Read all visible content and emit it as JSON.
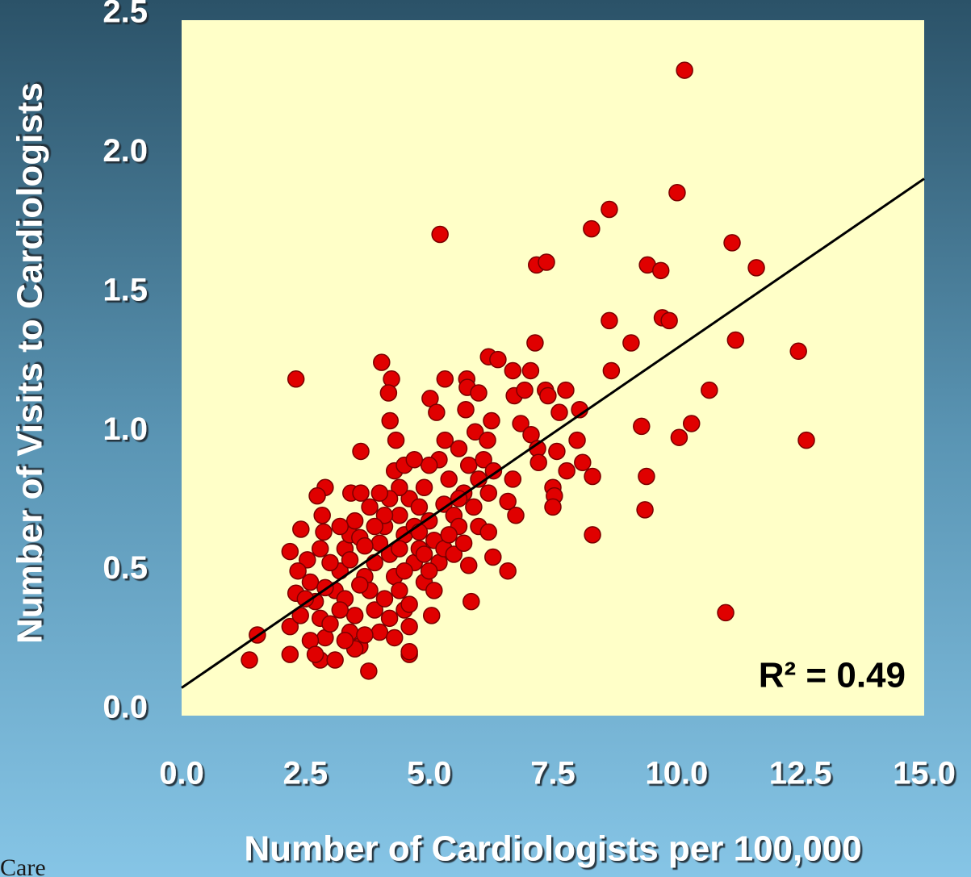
{
  "chart_data": {
    "type": "scatter",
    "x_label": "Number of Cardiologists per 100,000",
    "y_label": "Number of Visits to Cardiologists",
    "annotation": "R² = 0.49",
    "footnote": "Care",
    "xlim": [
      0,
      15
    ],
    "ylim": [
      0,
      2.5
    ],
    "xticks": [
      {
        "value": 0,
        "label": "0.0"
      },
      2.5,
      {
        "value": 5,
        "label": "5.0"
      },
      7.5,
      {
        "value": 10,
        "label": "10.0"
      },
      12.5,
      {
        "value": 15,
        "label": "15.0"
      }
    ],
    "yticks": [
      {
        "value": 0,
        "label": "0.0"
      },
      0.5,
      {
        "value": 1,
        "label": "1.0"
      },
      1.5,
      {
        "value": 2,
        "label": "2.0"
      },
      2.5
    ],
    "color": "#e00000",
    "edge_color": "#7a0000",
    "plot_background": "#ffffc8",
    "trendline": {
      "x": [
        0,
        15
      ],
      "y": [
        0.1,
        1.93
      ],
      "color": "#000000"
    },
    "x": [
      10.16,
      10.01,
      8.64,
      8.28,
      5.22,
      11.12,
      11.61,
      7.17,
      7.37,
      9.41,
      9.68,
      9.71,
      9.85,
      8.64,
      9.08,
      11.19,
      12.46,
      7.14,
      6.2,
      6.39,
      4.04,
      2.31,
      4.24,
      5.32,
      5.76,
      6.69,
      7.05,
      8.68,
      10.66,
      4.18,
      5.02,
      5.77,
      6.0,
      6.72,
      6.93,
      7.35,
      7.4,
      7.76,
      8.04,
      7.63,
      5.74,
      5.15,
      4.21,
      6.26,
      6.85,
      9.29,
      10.3,
      10.05,
      12.62,
      7.06,
      5.93,
      5.32,
      6.18,
      4.33,
      3.62,
      7.99,
      7.19,
      7.58,
      7.21,
      8.1,
      7.78,
      8.3,
      9.39,
      7.5,
      7.53,
      7.5,
      9.36,
      8.3,
      10.99,
      6.69,
      6.59,
      6.75,
      6.59,
      6.29,
      5.85,
      5.05,
      3.78,
      1.37,
      1.53,
      2.19,
      2.19,
      2.19,
      2.41,
      2.9,
      2.74,
      3.42,
      3.62,
      2.84,
      2.87,
      2.54,
      2.31,
      2.35,
      4.6,
      4.6,
      2.6,
      2.7,
      2.8,
      2.9,
      2.8,
      3.0,
      3.1,
      3.2,
      3.3,
      3.4,
      3.5,
      3.3,
      3.4,
      3.5,
      3.6,
      3.7,
      3.8,
      3.9,
      4.0,
      4.1,
      4.2,
      3.9,
      4.0,
      4.1,
      4.2,
      4.3,
      4.4,
      4.5,
      4.6,
      4.7,
      4.8,
      4.4,
      4.5,
      4.6,
      4.7,
      4.8,
      4.9,
      5.0,
      5.1,
      5.2,
      5.3,
      5.4,
      5.5,
      5.6,
      5.7,
      5.8,
      5.9,
      6.0,
      6.1,
      6.2,
      4.9,
      5.1,
      5.3,
      5.5,
      5.7,
      6.0,
      6.2,
      4.3,
      4.4,
      4.5,
      4.2,
      4.0,
      3.8,
      3.6,
      3.2,
      3.0,
      2.9,
      2.6,
      2.5,
      2.7,
      3.1,
      3.5,
      3.7,
      4.3,
      4.6,
      5.0,
      5.2,
      5.6,
      5.0,
      4.8,
      4.1,
      3.9,
      3.4,
      3.6,
      4.7,
      5.4,
      5.8,
      6.3,
      4.4,
      4.9,
      5.6,
      4.5,
      3.7,
      3.3,
      2.4,
      2.8,
      3.2
    ],
    "y": [
      2.32,
      1.88,
      1.82,
      1.75,
      1.73,
      1.7,
      1.61,
      1.62,
      1.63,
      1.62,
      1.6,
      1.43,
      1.42,
      1.42,
      1.34,
      1.35,
      1.31,
      1.34,
      1.29,
      1.28,
      1.27,
      1.21,
      1.21,
      1.21,
      1.21,
      1.24,
      1.24,
      1.24,
      1.17,
      1.16,
      1.14,
      1.18,
      1.16,
      1.15,
      1.17,
      1.17,
      1.15,
      1.17,
      1.1,
      1.09,
      1.1,
      1.09,
      1.06,
      1.06,
      1.05,
      1.04,
      1.05,
      1.0,
      0.99,
      1.01,
      1.02,
      0.99,
      0.99,
      0.99,
      0.95,
      0.99,
      0.96,
      0.95,
      0.91,
      0.91,
      0.88,
      0.86,
      0.86,
      0.82,
      0.79,
      0.75,
      0.74,
      0.65,
      0.37,
      0.85,
      0.77,
      0.72,
      0.52,
      0.57,
      0.41,
      0.36,
      0.16,
      0.2,
      0.29,
      0.32,
      0.22,
      0.59,
      0.67,
      0.82,
      0.79,
      0.8,
      0.8,
      0.72,
      0.66,
      0.56,
      0.44,
      0.52,
      0.22,
      0.23,
      0.48,
      0.41,
      0.35,
      0.28,
      0.2,
      0.33,
      0.45,
      0.52,
      0.6,
      0.65,
      0.7,
      0.42,
      0.3,
      0.36,
      0.25,
      0.5,
      0.45,
      0.55,
      0.62,
      0.68,
      0.58,
      0.38,
      0.3,
      0.42,
      0.35,
      0.5,
      0.72,
      0.65,
      0.78,
      0.55,
      0.6,
      0.45,
      0.38,
      0.32,
      0.68,
      0.75,
      0.82,
      0.7,
      0.63,
      0.55,
      0.76,
      0.85,
      0.72,
      0.68,
      0.8,
      0.9,
      0.75,
      0.85,
      0.92,
      0.8,
      0.48,
      0.45,
      0.6,
      0.58,
      0.62,
      0.68,
      0.66,
      0.88,
      0.82,
      0.9,
      0.78,
      0.8,
      0.75,
      0.64,
      0.38,
      0.55,
      0.46,
      0.27,
      0.42,
      0.22,
      0.2,
      0.24,
      0.29,
      0.28,
      0.4,
      0.52,
      0.92,
      0.96,
      0.9,
      0.66,
      0.72,
      0.68,
      0.56,
      0.47,
      0.92,
      0.65,
      0.54,
      0.88,
      0.6,
      0.58,
      0.78,
      0.52,
      0.61,
      0.27,
      0.36,
      0.6,
      0.68
    ]
  }
}
